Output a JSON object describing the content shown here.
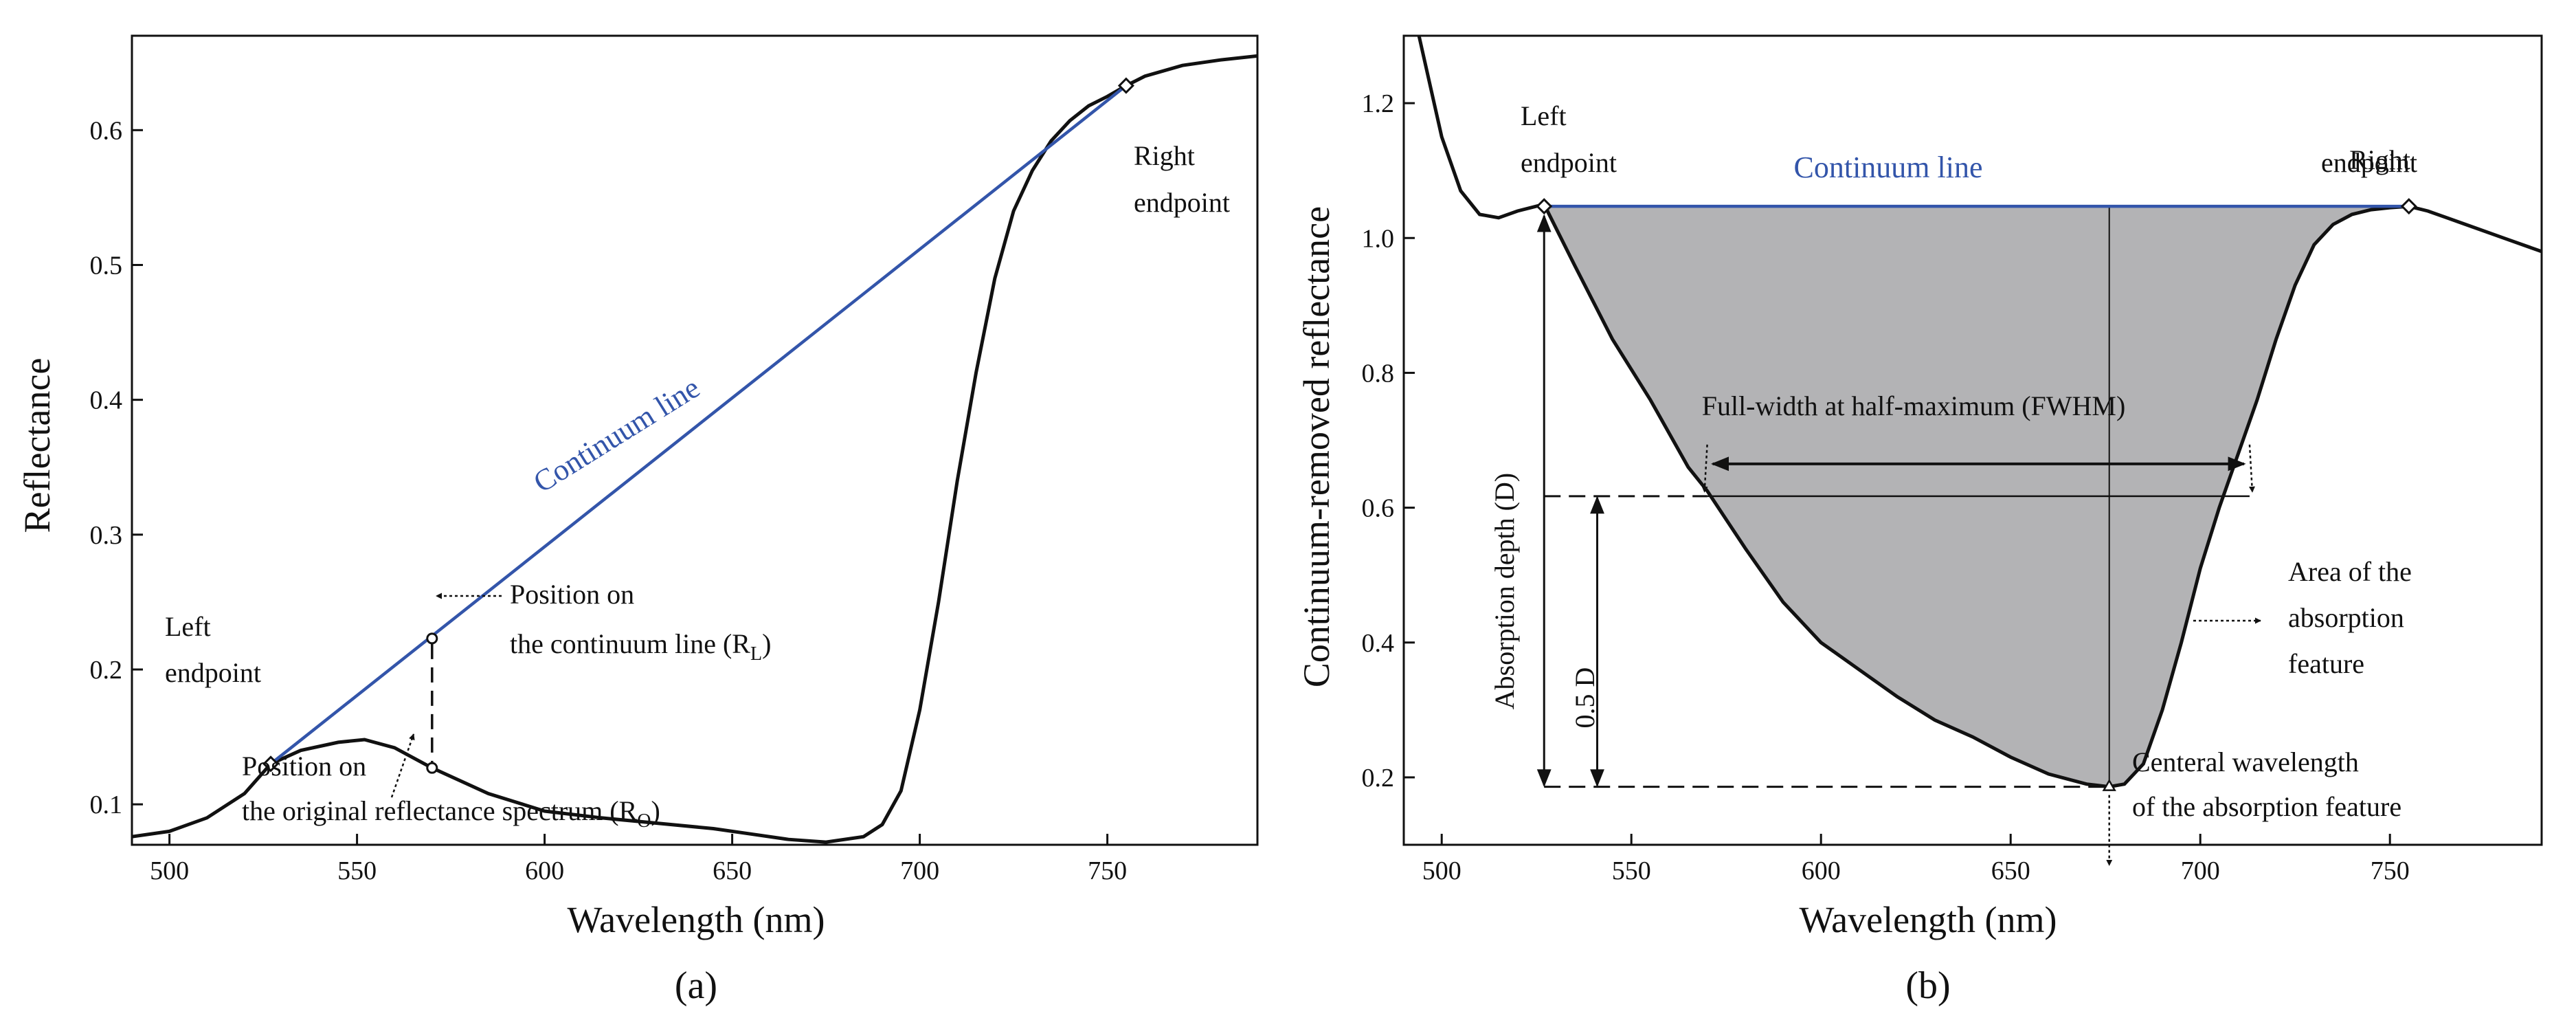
{
  "chart_data": [
    {
      "panel": "a",
      "type": "line",
      "caption": "(a)",
      "xlabel": "Wavelength (nm)",
      "ylabel": "Reflectance",
      "xlim": [
        490,
        790
      ],
      "ylim": [
        0.07,
        0.67
      ],
      "xticks": [
        500,
        550,
        600,
        650,
        700,
        750
      ],
      "yticks": [
        0.1,
        0.2,
        0.3,
        0.4,
        0.5,
        0.6
      ],
      "series": [
        {
          "name": "Original reflectance spectrum",
          "color": "#111111",
          "x": [
            490,
            500,
            510,
            520,
            527,
            535,
            545,
            552,
            560,
            570,
            585,
            600,
            615,
            630,
            645,
            655,
            665,
            675,
            685,
            690,
            695,
            700,
            705,
            710,
            715,
            720,
            725,
            730,
            735,
            740,
            745,
            750,
            755,
            760,
            770,
            780,
            790
          ],
          "y": [
            0.076,
            0.08,
            0.09,
            0.108,
            0.13,
            0.14,
            0.146,
            0.148,
            0.142,
            0.127,
            0.108,
            0.095,
            0.09,
            0.086,
            0.082,
            0.078,
            0.074,
            0.072,
            0.076,
            0.085,
            0.11,
            0.17,
            0.25,
            0.34,
            0.42,
            0.49,
            0.54,
            0.57,
            0.592,
            0.607,
            0.618,
            0.625,
            0.633,
            0.64,
            0.648,
            0.652,
            0.655
          ]
        },
        {
          "name": "Continuum line",
          "color": "#3355aa",
          "x": [
            527,
            755
          ],
          "y": [
            0.13,
            0.633
          ]
        }
      ],
      "annotations": {
        "continuum_label": "Continuum line",
        "left_endpoint": [
          "Left",
          "endpoint"
        ],
        "right_endpoint": [
          "Right",
          "endpoint"
        ],
        "rl_lines": [
          "Position on",
          "the continuum line (R",
          "L",
          ")"
        ],
        "ro_lines": [
          "Position on",
          "the original reflectance spectrum (R",
          "O",
          ")"
        ]
      },
      "markers": {
        "left_endpoint": [
          527,
          0.13
        ],
        "right_endpoint": [
          755,
          0.633
        ],
        "rl_point": [
          570,
          0.223
        ],
        "ro_point": [
          570,
          0.127
        ]
      }
    },
    {
      "panel": "b",
      "type": "area",
      "caption": "(b)",
      "xlabel": "Wavelength (nm)",
      "ylabel": "Continuum-removed reflectance",
      "xlim": [
        490,
        790
      ],
      "ylim": [
        0.1,
        1.3
      ],
      "xticks": [
        500,
        550,
        600,
        650,
        700,
        750
      ],
      "yticks": [
        0.2,
        0.4,
        0.6,
        0.8,
        1.0,
        1.2
      ],
      "series": [
        {
          "name": "Continuum-removed reflectance",
          "color": "#111111",
          "x": [
            494,
            500,
            505,
            510,
            515,
            520,
            527,
            535,
            545,
            555,
            565,
            570,
            580,
            590,
            600,
            610,
            620,
            630,
            640,
            650,
            660,
            670,
            676,
            680,
            685,
            690,
            695,
            700,
            705,
            710,
            715,
            720,
            725,
            730,
            735,
            740,
            745,
            750,
            755,
            760,
            770,
            780,
            790
          ],
          "y": [
            1.3,
            1.15,
            1.07,
            1.035,
            1.03,
            1.04,
            1.05,
            0.96,
            0.85,
            0.76,
            0.66,
            0.625,
            0.54,
            0.46,
            0.4,
            0.36,
            0.32,
            0.285,
            0.26,
            0.23,
            0.205,
            0.19,
            0.186,
            0.19,
            0.22,
            0.3,
            0.4,
            0.51,
            0.6,
            0.68,
            0.76,
            0.85,
            0.93,
            0.99,
            1.02,
            1.035,
            1.042,
            1.045,
            1.047,
            1.04,
            1.02,
            1.0,
            0.98
          ]
        },
        {
          "name": "Continuum line",
          "color": "#3355aa",
          "x": [
            527,
            755
          ],
          "y": [
            1.047,
            1.047
          ]
        }
      ],
      "fill_range": [
        527,
        755
      ],
      "depth": 0.86,
      "central_wavelength": 676,
      "minimum_reflectance": 0.186,
      "half_max_level": 0.617,
      "fwhm_range": [
        570,
        713
      ],
      "annotations": {
        "continuum_label": "Continuum line",
        "left_endpoint": [
          "Left",
          "endpoint"
        ],
        "right_endpoint": [
          "Right",
          "endpoint"
        ],
        "fwhm_label": "Full-width at half-maximum (FWHM)",
        "depth_label": "Absorption depth (D)",
        "half_depth_label": "0.5 D",
        "area_label": [
          "Area of the",
          "absorption",
          "feature"
        ],
        "center_label": [
          "Centeral wavelength",
          "of the absorption feature"
        ]
      }
    }
  ]
}
